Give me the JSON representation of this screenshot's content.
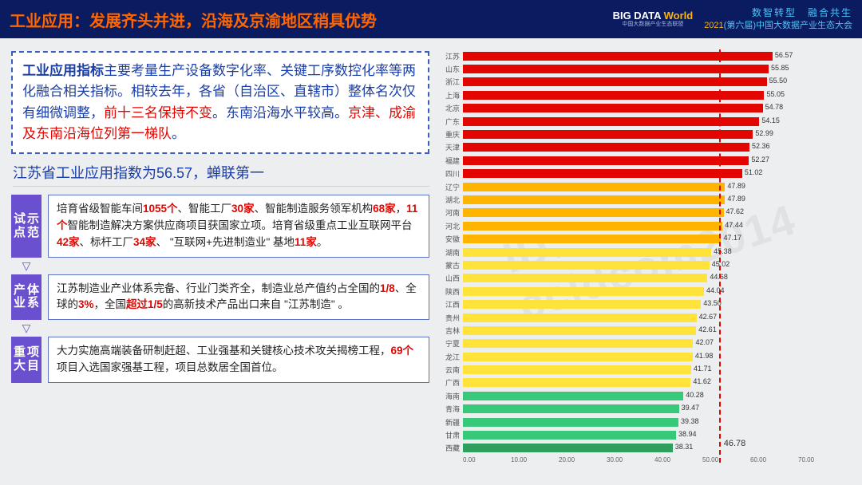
{
  "header": {
    "title": "工业应用：发展齐头并进，沿海及京渝地区稍具优势",
    "logo_main_pre": "BIG DATA ",
    "logo_main_post": "World",
    "logo_sub": "中国大数据产业生态联盟",
    "conf_line1": "数智转型　融合共生",
    "conf_year": "2021",
    "conf_rest": "(第六届)中国大数据产业生态大会"
  },
  "intro": {
    "lead": "工业应用指标",
    "body1": "主要考量生产设备数字化率、关键工序数控化率等两化融合相关指标。相较去年，各省（自治区、直辖市）整体名次仅有细微调整，",
    "hl1": "前十三名保持不变",
    "body2": "。东南沿海水平较高。",
    "hl2": "京津、成渝及东南沿海位列第一梯队",
    "body3": "。"
  },
  "subhead": "江苏省工业应用指数为56.57，蝉联第一",
  "sections": [
    {
      "tag": "试点示范",
      "text_parts": [
        {
          "t": "培育省级智能车间"
        },
        {
          "t": "1055个",
          "r": 1
        },
        {
          "t": "、智能工厂"
        },
        {
          "t": "30家",
          "r": 1
        },
        {
          "t": "、智能制造服务领军机构"
        },
        {
          "t": "68家",
          "r": 1
        },
        {
          "t": "，"
        },
        {
          "t": "11个",
          "r": 1
        },
        {
          "t": "智能制造解决方案供应商项目获国家立项。培育省级重点工业互联网平台"
        },
        {
          "t": "42家",
          "r": 1
        },
        {
          "t": "、标杆工厂"
        },
        {
          "t": "34家",
          "r": 1
        },
        {
          "t": "、 \"互联网+先进制造业\" 基地"
        },
        {
          "t": "11家",
          "r": 1
        },
        {
          "t": "。"
        }
      ]
    },
    {
      "tag": "产业体系",
      "text_parts": [
        {
          "t": "江苏制造业产业体系完备、行业门类齐全，制造业总产值约占全国的"
        },
        {
          "t": "1/8",
          "r": 1
        },
        {
          "t": "、全球的"
        },
        {
          "t": "3%",
          "r": 1
        },
        {
          "t": "，全国"
        },
        {
          "t": "超过1/5",
          "r": 1
        },
        {
          "t": "的高新技术产品出口来自 \"江苏制造\" 。"
        }
      ]
    },
    {
      "tag": "重大项目",
      "text_parts": [
        {
          "t": "大力实施高端装备研制赶超、工业强基和关键核心技术攻关揭榜工程，"
        },
        {
          "t": "69个",
          "r": 1
        },
        {
          "t": "项目入选国家强基工程，项目总数居全国首位。"
        }
      ]
    }
  ],
  "chart": {
    "type": "bar-horizontal",
    "xmax": 70.0,
    "xticks": [
      "0.00",
      "10.00",
      "20.00",
      "30.00",
      "40.00",
      "50.00",
      "60.00",
      "70.00"
    ],
    "average": 46.78,
    "average_label": "46.78",
    "colors": {
      "tier1": "#e20500",
      "tier2": "#ffb400",
      "tier3": "#ffe23a",
      "tier4": "#37c879",
      "tier5": "#2e9f5c"
    },
    "bars": [
      {
        "label": "江苏",
        "value": 56.57,
        "tier": 1
      },
      {
        "label": "山东",
        "value": 55.85,
        "tier": 1
      },
      {
        "label": "浙江",
        "value": 55.5,
        "tier": 1
      },
      {
        "label": "上海",
        "value": 55.05,
        "tier": 1
      },
      {
        "label": "北京",
        "value": 54.78,
        "tier": 1
      },
      {
        "label": "广东",
        "value": 54.15,
        "tier": 1
      },
      {
        "label": "重庆",
        "value": 52.99,
        "tier": 1
      },
      {
        "label": "天津",
        "value": 52.36,
        "tier": 1
      },
      {
        "label": "福建",
        "value": 52.27,
        "tier": 1
      },
      {
        "label": "四川",
        "value": 51.02,
        "tier": 1
      },
      {
        "label": "辽宁",
        "value": 47.89,
        "tier": 2
      },
      {
        "label": "湖北",
        "value": 47.89,
        "tier": 2
      },
      {
        "label": "河南",
        "value": 47.62,
        "tier": 2
      },
      {
        "label": "河北",
        "value": 47.44,
        "tier": 2
      },
      {
        "label": "安徽",
        "value": 47.17,
        "tier": 2
      },
      {
        "label": "湖南",
        "value": 45.38,
        "tier": 3
      },
      {
        "label": "蒙古",
        "value": 45.02,
        "tier": 3
      },
      {
        "label": "山西",
        "value": 44.68,
        "tier": 3
      },
      {
        "label": "陕西",
        "value": 44.04,
        "tier": 3
      },
      {
        "label": "江西",
        "value": 43.5,
        "tier": 3
      },
      {
        "label": "贵州",
        "value": 42.67,
        "tier": 3
      },
      {
        "label": "吉林",
        "value": 42.61,
        "tier": 3
      },
      {
        "label": "宁夏",
        "value": 42.07,
        "tier": 3
      },
      {
        "label": "龙江",
        "value": 41.98,
        "tier": 3
      },
      {
        "label": "云南",
        "value": 41.71,
        "tier": 3
      },
      {
        "label": "广西",
        "value": 41.62,
        "tier": 3
      },
      {
        "label": "海南",
        "value": 40.28,
        "tier": 4
      },
      {
        "label": "青海",
        "value": 39.47,
        "tier": 4
      },
      {
        "label": "新疆",
        "value": 39.38,
        "tier": 4
      },
      {
        "label": "甘肃",
        "value": 38.94,
        "tier": 4
      },
      {
        "label": "西藏",
        "value": 38.31,
        "tier": 5
      }
    ]
  },
  "watermark": "ID: ccidcom2014"
}
